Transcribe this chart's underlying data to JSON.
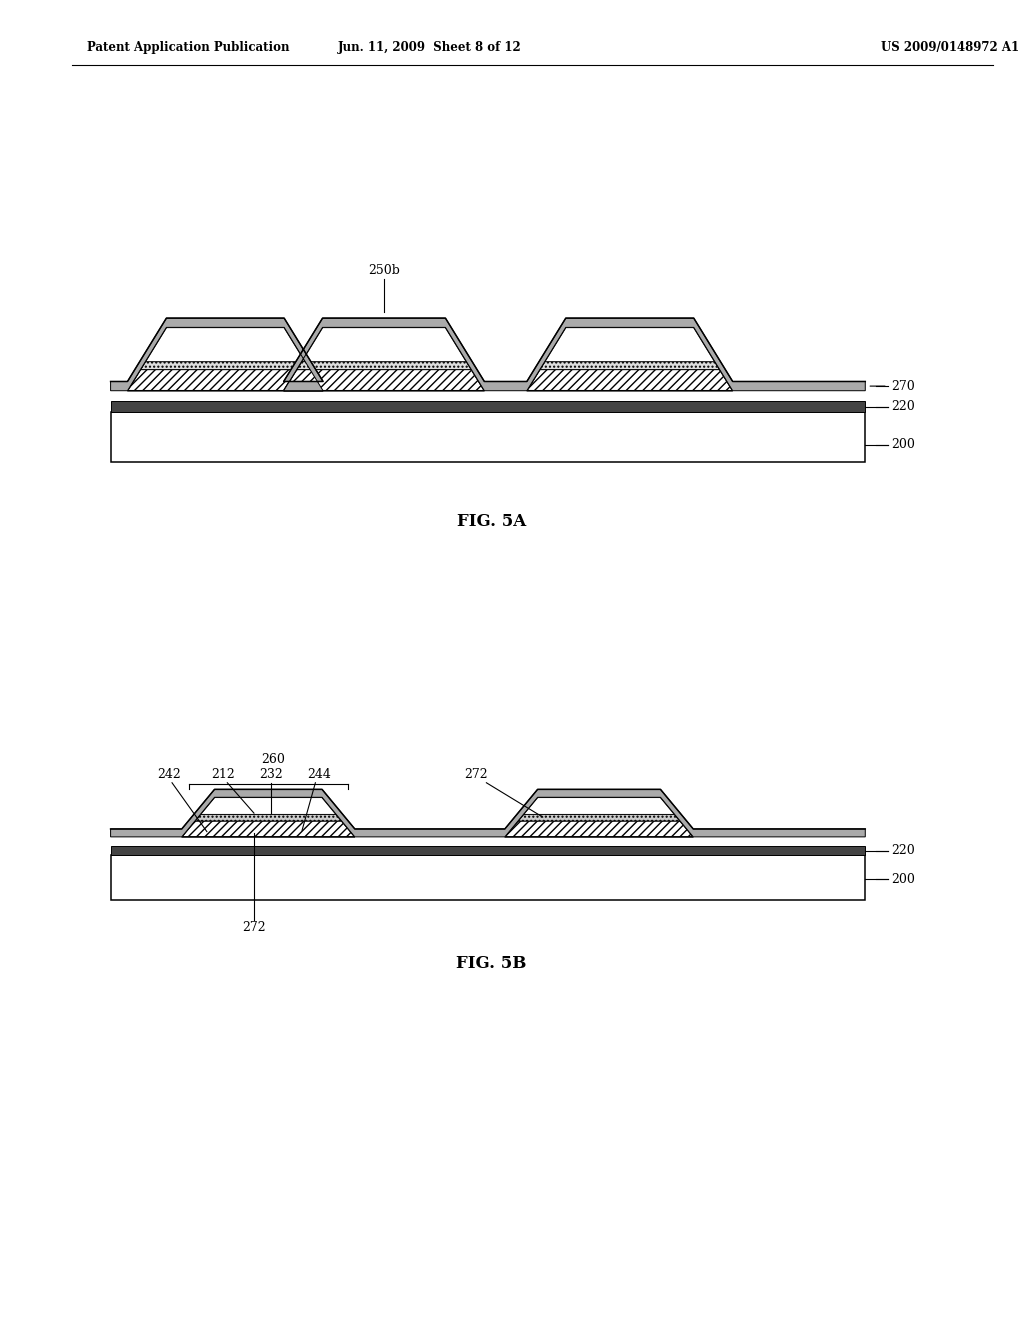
{
  "bg_color": "#ffffff",
  "header_left": "Patent Application Publication",
  "header_mid": "Jun. 11, 2009  Sheet 8 of 12",
  "header_right": "US 2009/0148972 A1",
  "fig5a_label": "FIG. 5A",
  "fig5b_label": "FIG. 5B",
  "label_color": "#000000",
  "line_color": "#000000"
}
